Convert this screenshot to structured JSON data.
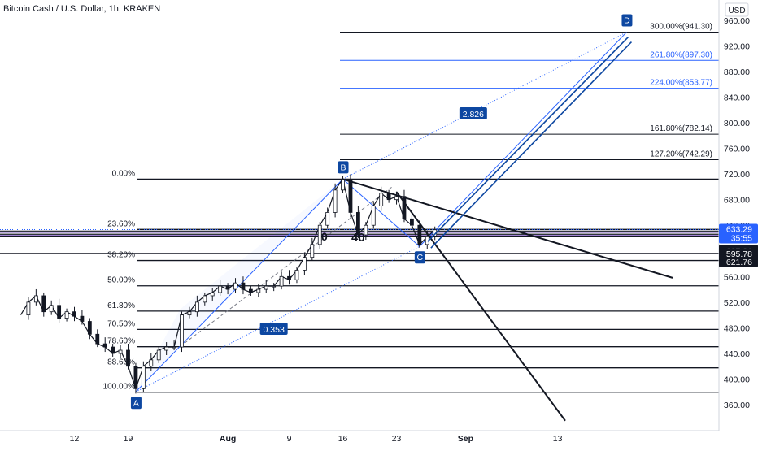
{
  "header": {
    "title": "Bitcoin Cash / U.S. Dollar, 1h, KRAKEN",
    "currency_badge": "USD"
  },
  "chart_data": {
    "type": "line",
    "title": "Bitcoin Cash / U.S. Dollar, 1h, KRAKEN",
    "xlabel": "",
    "ylabel": "",
    "currency": "USD",
    "grid": false,
    "ylim": [
      340,
      970
    ],
    "y_ticks": [
      960,
      920,
      880,
      840,
      800,
      760,
      720,
      680,
      640,
      600,
      560,
      520,
      480,
      440,
      400,
      360
    ],
    "y_tick_labels": [
      "960.00",
      "920.00",
      "880.00",
      "840.00",
      "800.00",
      "760.00",
      "720.00",
      "680.00",
      "640.00",
      "600.00",
      "560.00",
      "520.00",
      "480.00",
      "440.00",
      "400.00",
      "360.00"
    ],
    "x_ticks": [
      {
        "date": "2021-07-12",
        "label": "12"
      },
      {
        "date": "2021-07-19",
        "label": "19"
      },
      {
        "date": "2021-08-01",
        "label": "Aug"
      },
      {
        "date": "2021-08-09",
        "label": "9"
      },
      {
        "date": "2021-08-16",
        "label": "16"
      },
      {
        "date": "2021-08-23",
        "label": "23"
      },
      {
        "date": "2021-09-01",
        "label": "Sep"
      },
      {
        "date": "2021-09-13",
        "label": "13"
      }
    ],
    "price_series": {
      "name": "",
      "points": [
        [
          "2021-07-05",
          500
        ],
        [
          "2021-07-06",
          520
        ],
        [
          "2021-07-07",
          530
        ],
        [
          "2021-07-08",
          505
        ],
        [
          "2021-07-09",
          515
        ],
        [
          "2021-07-10",
          495
        ],
        [
          "2021-07-11",
          505
        ],
        [
          "2021-07-12",
          498
        ],
        [
          "2021-07-13",
          490
        ],
        [
          "2021-07-14",
          470
        ],
        [
          "2021-07-15",
          455
        ],
        [
          "2021-07-16",
          450
        ],
        [
          "2021-07-17",
          440
        ],
        [
          "2021-07-18",
          445
        ],
        [
          "2021-07-19",
          420
        ],
        [
          "2021-07-20",
          385
        ],
        [
          "2021-07-21",
          420
        ],
        [
          "2021-07-22",
          430
        ],
        [
          "2021-07-23",
          445
        ],
        [
          "2021-07-24",
          450
        ],
        [
          "2021-07-25",
          450
        ],
        [
          "2021-07-26",
          500
        ],
        [
          "2021-07-27",
          505
        ],
        [
          "2021-07-28",
          520
        ],
        [
          "2021-07-29",
          530
        ],
        [
          "2021-07-30",
          535
        ],
        [
          "2021-07-31",
          545
        ],
        [
          "2021-08-01",
          540
        ],
        [
          "2021-08-02",
          550
        ],
        [
          "2021-08-03",
          540
        ],
        [
          "2021-08-04",
          535
        ],
        [
          "2021-08-05",
          540
        ],
        [
          "2021-08-06",
          545
        ],
        [
          "2021-08-07",
          545
        ],
        [
          "2021-08-08",
          560
        ],
        [
          "2021-08-09",
          555
        ],
        [
          "2021-08-10",
          570
        ],
        [
          "2021-08-11",
          590
        ],
        [
          "2021-08-12",
          610
        ],
        [
          "2021-08-13",
          640
        ],
        [
          "2021-08-14",
          660
        ],
        [
          "2021-08-15",
          695
        ],
        [
          "2021-08-16",
          712
        ],
        [
          "2021-08-17",
          660
        ],
        [
          "2021-08-18",
          625
        ],
        [
          "2021-08-19",
          640
        ],
        [
          "2021-08-20",
          670
        ],
        [
          "2021-08-21",
          690
        ],
        [
          "2021-08-22",
          680
        ],
        [
          "2021-08-23",
          685
        ],
        [
          "2021-08-24",
          650
        ],
        [
          "2021-08-25",
          640
        ],
        [
          "2021-08-26",
          610
        ],
        [
          "2021-08-27",
          622
        ],
        [
          "2021-08-28",
          633
        ]
      ]
    },
    "fib_retracement_levels": [
      {
        "ratio": "0.00%",
        "price": 712
      },
      {
        "ratio": "23.60%",
        "price": 633.5
      },
      {
        "ratio": "38.20%",
        "price": 585
      },
      {
        "ratio": "50.00%",
        "price": 545.5
      },
      {
        "ratio": "61.80%",
        "price": 506
      },
      {
        "ratio": "70.50%",
        "price": 477.5
      },
      {
        "ratio": "78.60%",
        "price": 450.5
      },
      {
        "ratio": "88.60%",
        "price": 417.5
      },
      {
        "ratio": "100.00%",
        "price": 379.5
      }
    ],
    "fib_extension_levels": [
      {
        "label": "300.00%(941.30)",
        "price": 941.3,
        "color": "#131722"
      },
      {
        "label": "261.80%(897.30)",
        "price": 897.3,
        "color": "#2962ff"
      },
      {
        "label": "224.00%(853.77)",
        "price": 853.77,
        "color": "#2962ff"
      },
      {
        "label": "161.80%(782.14)",
        "price": 782.14,
        "color": "#131722"
      },
      {
        "label": "127.20%(742.29)",
        "price": 742.29,
        "color": "#131722"
      }
    ],
    "abcd_pattern": {
      "points": [
        {
          "label": "A",
          "date": "2021-07-20",
          "price": 380
        },
        {
          "label": "B",
          "date": "2021-08-16",
          "price": 712
        },
        {
          "label": "C",
          "date": "2021-08-26",
          "price": 607
        },
        {
          "label": "D",
          "date": "2021-09-22",
          "price": 941.3
        }
      ],
      "ratios": [
        {
          "label": "0.353",
          "date": "2021-08-07",
          "price": 478
        },
        {
          "label": "2.826",
          "date": "2021-09-02",
          "price": 814
        }
      ]
    },
    "price_badges": [
      {
        "text": "633.29",
        "sub": "35:55",
        "price": 633.29,
        "color": "#2962ff"
      },
      {
        "text": "627.31",
        "price": 627.31,
        "color": "#131722"
      },
      {
        "text": "621.76",
        "price": 621.76,
        "color": "#131722"
      },
      {
        "text": "595.78",
        "price": 595.78,
        "color": "#131722"
      }
    ],
    "horizontal_lines": [
      {
        "price": 631,
        "color": "#131722"
      },
      {
        "price": 629,
        "color": "#7e57c2"
      },
      {
        "price": 626,
        "color": "#131722"
      },
      {
        "price": 624,
        "color": "#7e57c2"
      },
      {
        "price": 622,
        "color": "#131722"
      },
      {
        "price": 596,
        "color": "#131722"
      }
    ],
    "trendlines": [
      {
        "from": [
          "2021-08-16",
          712
        ],
        "to": [
          "2021-09-28",
          558
        ]
      },
      {
        "from": [
          "2021-08-23",
          692
        ],
        "to": [
          "2021-09-14",
          335
        ]
      }
    ],
    "annotation_marks": [
      "0",
      "40"
    ],
    "colors": {
      "pattern_blue": "#2962ff",
      "badge_blue": "#0d47a1",
      "candle_up": "#131722",
      "candle_down": "#131722",
      "highlight": "#7e57c2"
    }
  }
}
